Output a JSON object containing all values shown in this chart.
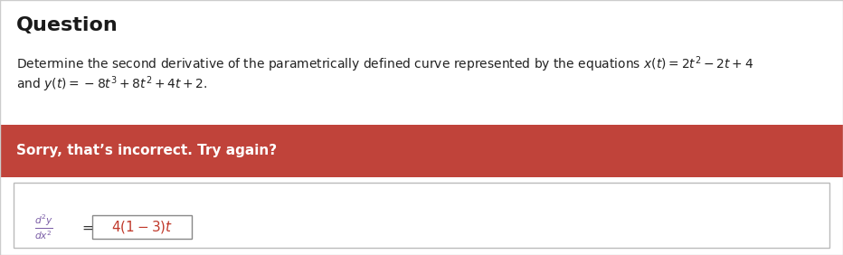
{
  "title": "Question",
  "q_line1": "Determine the second derivative of the parametrically defined curve represented by the equations $x(t) = 2t^2 - 2t + 4$",
  "q_line2": "and $y(t) = -8t^3 + 8t^2 + 4t + 2$.",
  "error_msg": "Sorry, that’s incorrect. Try again?",
  "error_bg": "#c0433a",
  "error_text_color": "#ffffff",
  "bg_color": "#ffffff",
  "border_color": "#cccccc",
  "title_color": "#1a1a1a",
  "question_text_color": "#222222",
  "answer_text_color": "#c0392b",
  "fraction_color": "#7b5ea7"
}
